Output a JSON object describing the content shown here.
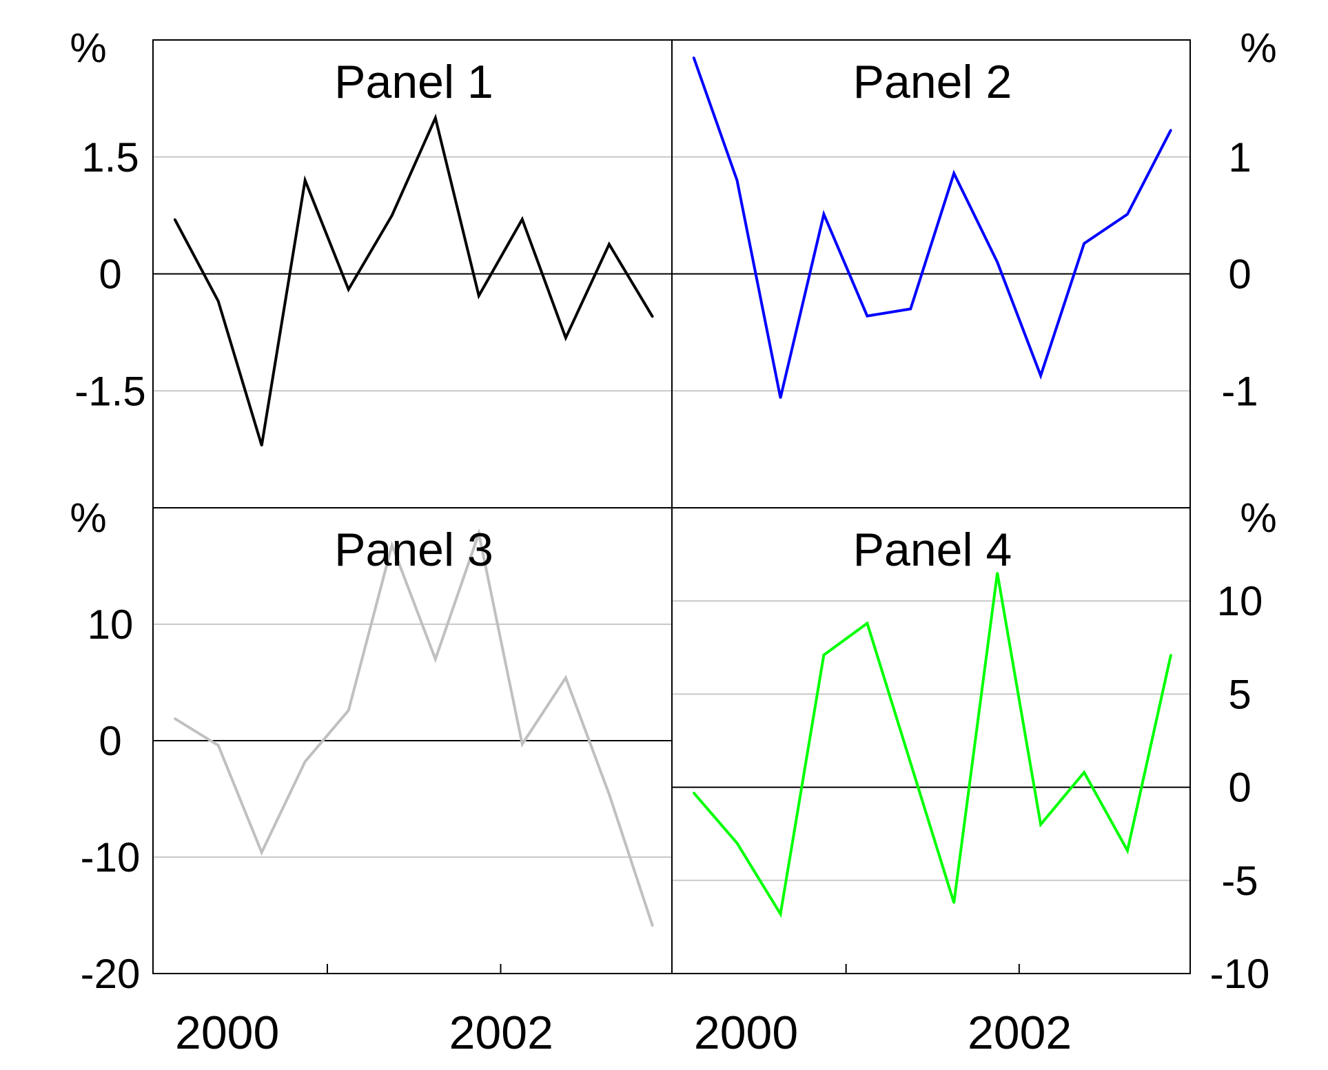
{
  "chart_data": [
    {
      "type": "line",
      "title": "Panel 1",
      "unit": "%",
      "y_axis_side": "left",
      "ylim": [
        -3,
        3
      ],
      "yticks": [
        {
          "value": 1.5,
          "label": "1.5"
        },
        {
          "value": 0,
          "label": "0"
        },
        {
          "value": -1.5,
          "label": "-1.5"
        }
      ],
      "x_labels": [
        "2000",
        "2002"
      ],
      "grid": true,
      "color": "#000000",
      "values": [
        0.7,
        -0.35,
        -2.2,
        1.2,
        -0.2,
        0.75,
        2.0,
        -0.28,
        0.7,
        -0.82,
        0.38,
        -0.55
      ]
    },
    {
      "type": "line",
      "title": "Panel 2",
      "unit": "%",
      "y_axis_side": "right",
      "ylim": [
        -2,
        2
      ],
      "yticks": [
        {
          "value": 1,
          "label": "1"
        },
        {
          "value": 0,
          "label": "0"
        },
        {
          "value": -1,
          "label": "-1"
        }
      ],
      "x_labels": [],
      "grid": true,
      "color": "#0000ff",
      "values": [
        1.85,
        0.8,
        -1.06,
        0.51,
        -0.36,
        -0.3,
        0.86,
        0.1,
        -0.87,
        0.26,
        0.51,
        1.23
      ]
    },
    {
      "type": "line",
      "title": "Panel 3",
      "unit": "%",
      "y_axis_side": "left",
      "ylim": [
        -20,
        20
      ],
      "yticks": [
        {
          "value": 10,
          "label": "10"
        },
        {
          "value": 0,
          "label": "0"
        },
        {
          "value": -10,
          "label": "-10"
        },
        {
          "value": -20,
          "label": "-20"
        }
      ],
      "x_labels": [
        "2000",
        "2002"
      ],
      "grid": true,
      "color": "#c0c0c0",
      "values": [
        1.9,
        -0.4,
        -9.6,
        -1.8,
        2.6,
        16.8,
        7.0,
        17.8,
        -0.3,
        5.4,
        -4.6,
        -15.9
      ]
    },
    {
      "type": "line",
      "title": "Panel 4",
      "unit": "%",
      "y_axis_side": "right",
      "ylim": [
        -10,
        15
      ],
      "yticks": [
        {
          "value": 10,
          "label": "10"
        },
        {
          "value": 5,
          "label": "5"
        },
        {
          "value": 0,
          "label": "0"
        },
        {
          "value": -5,
          "label": "-5"
        },
        {
          "value": -10,
          "label": "-10"
        }
      ],
      "x_labels": [
        "2000",
        "2002"
      ],
      "grid": true,
      "color": "#00ff00",
      "values": [
        -0.3,
        -3.0,
        -6.8,
        7.1,
        8.8,
        1.3,
        -6.2,
        11.5,
        -2.0,
        0.8,
        -3.4,
        7.1
      ]
    }
  ]
}
